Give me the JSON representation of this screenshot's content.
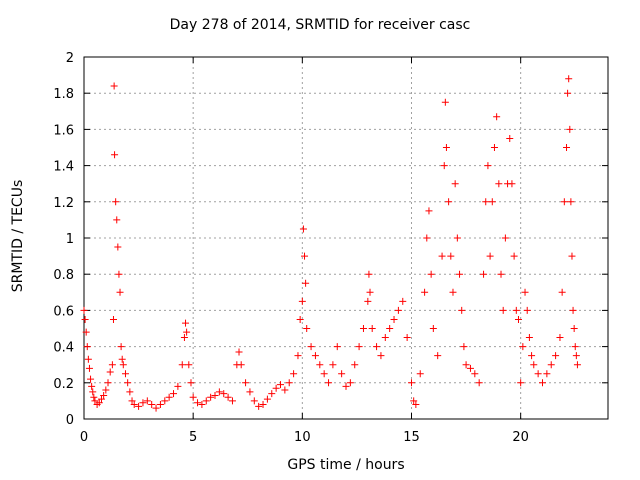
{
  "chart_data": {
    "type": "scatter",
    "title": "Day 278 of 2014, SRMTID for receiver casc",
    "xlabel": "GPS time / hours",
    "ylabel": "SRMTID / TECUs",
    "xlim": [
      0,
      24
    ],
    "ylim": [
      0,
      2
    ],
    "xticks": [
      0,
      5,
      10,
      15,
      20
    ],
    "yticks": [
      0,
      0.2,
      0.4,
      0.6,
      0.8,
      1,
      1.2,
      1.4,
      1.6,
      1.8,
      2
    ],
    "grid": true,
    "marker": "+",
    "color": "#ff0000",
    "series": [
      {
        "name": "SRMTID",
        "points": [
          [
            0.0,
            0.6
          ],
          [
            0.05,
            0.55
          ],
          [
            0.1,
            0.48
          ],
          [
            0.15,
            0.4
          ],
          [
            0.2,
            0.33
          ],
          [
            0.25,
            0.28
          ],
          [
            0.3,
            0.22
          ],
          [
            0.35,
            0.18
          ],
          [
            0.4,
            0.15
          ],
          [
            0.45,
            0.12
          ],
          [
            0.5,
            0.1
          ],
          [
            0.6,
            0.08
          ],
          [
            0.7,
            0.09
          ],
          [
            0.8,
            0.11
          ],
          [
            0.9,
            0.13
          ],
          [
            1.0,
            0.16
          ],
          [
            1.1,
            0.2
          ],
          [
            1.2,
            0.26
          ],
          [
            1.3,
            0.3
          ],
          [
            1.35,
            0.55
          ],
          [
            1.38,
            1.84
          ],
          [
            1.4,
            1.46
          ],
          [
            1.45,
            1.2
          ],
          [
            1.5,
            1.1
          ],
          [
            1.55,
            0.95
          ],
          [
            1.6,
            0.8
          ],
          [
            1.65,
            0.7
          ],
          [
            1.7,
            0.4
          ],
          [
            1.75,
            0.33
          ],
          [
            1.8,
            0.3
          ],
          [
            1.9,
            0.25
          ],
          [
            2.0,
            0.2
          ],
          [
            2.1,
            0.15
          ],
          [
            2.2,
            0.1
          ],
          [
            2.3,
            0.08
          ],
          [
            2.5,
            0.07
          ],
          [
            2.7,
            0.09
          ],
          [
            2.9,
            0.1
          ],
          [
            3.1,
            0.08
          ],
          [
            3.3,
            0.06
          ],
          [
            3.5,
            0.08
          ],
          [
            3.7,
            0.1
          ],
          [
            3.9,
            0.12
          ],
          [
            4.1,
            0.14
          ],
          [
            4.3,
            0.18
          ],
          [
            4.5,
            0.3
          ],
          [
            4.6,
            0.45
          ],
          [
            4.65,
            0.53
          ],
          [
            4.7,
            0.48
          ],
          [
            4.8,
            0.3
          ],
          [
            4.9,
            0.2
          ],
          [
            5.0,
            0.12
          ],
          [
            5.2,
            0.09
          ],
          [
            5.4,
            0.08
          ],
          [
            5.6,
            0.1
          ],
          [
            5.8,
            0.12
          ],
          [
            6.0,
            0.13
          ],
          [
            6.2,
            0.15
          ],
          [
            6.4,
            0.14
          ],
          [
            6.6,
            0.12
          ],
          [
            6.8,
            0.1
          ],
          [
            7.0,
            0.3
          ],
          [
            7.1,
            0.37
          ],
          [
            7.2,
            0.3
          ],
          [
            7.4,
            0.2
          ],
          [
            7.6,
            0.15
          ],
          [
            7.8,
            0.1
          ],
          [
            8.0,
            0.07
          ],
          [
            8.2,
            0.08
          ],
          [
            8.4,
            0.11
          ],
          [
            8.6,
            0.14
          ],
          [
            8.8,
            0.17
          ],
          [
            9.0,
            0.19
          ],
          [
            9.2,
            0.16
          ],
          [
            9.4,
            0.2
          ],
          [
            9.6,
            0.25
          ],
          [
            9.8,
            0.35
          ],
          [
            9.9,
            0.55
          ],
          [
            10.0,
            0.65
          ],
          [
            10.05,
            1.05
          ],
          [
            10.1,
            0.9
          ],
          [
            10.15,
            0.75
          ],
          [
            10.2,
            0.5
          ],
          [
            10.4,
            0.4
          ],
          [
            10.6,
            0.35
          ],
          [
            10.8,
            0.3
          ],
          [
            11.0,
            0.25
          ],
          [
            11.2,
            0.2
          ],
          [
            11.4,
            0.3
          ],
          [
            11.6,
            0.4
          ],
          [
            11.8,
            0.25
          ],
          [
            12.0,
            0.18
          ],
          [
            12.2,
            0.2
          ],
          [
            12.4,
            0.3
          ],
          [
            12.6,
            0.4
          ],
          [
            12.8,
            0.5
          ],
          [
            13.0,
            0.65
          ],
          [
            13.05,
            0.8
          ],
          [
            13.1,
            0.7
          ],
          [
            13.2,
            0.5
          ],
          [
            13.4,
            0.4
          ],
          [
            13.6,
            0.35
          ],
          [
            13.8,
            0.45
          ],
          [
            14.0,
            0.5
          ],
          [
            14.2,
            0.55
          ],
          [
            14.4,
            0.6
          ],
          [
            14.6,
            0.65
          ],
          [
            14.8,
            0.45
          ],
          [
            15.0,
            0.2
          ],
          [
            15.1,
            0.1
          ],
          [
            15.2,
            0.08
          ],
          [
            15.4,
            0.25
          ],
          [
            15.6,
            0.7
          ],
          [
            15.7,
            1.0
          ],
          [
            15.8,
            1.15
          ],
          [
            15.9,
            0.8
          ],
          [
            16.0,
            0.5
          ],
          [
            16.2,
            0.35
          ],
          [
            16.4,
            0.9
          ],
          [
            16.5,
            1.4
          ],
          [
            16.55,
            1.75
          ],
          [
            16.6,
            1.5
          ],
          [
            16.7,
            1.2
          ],
          [
            16.8,
            0.9
          ],
          [
            16.9,
            0.7
          ],
          [
            17.0,
            1.3
          ],
          [
            17.1,
            1.0
          ],
          [
            17.2,
            0.8
          ],
          [
            17.3,
            0.6
          ],
          [
            17.4,
            0.4
          ],
          [
            17.5,
            0.3
          ],
          [
            17.7,
            0.28
          ],
          [
            17.9,
            0.25
          ],
          [
            18.1,
            0.2
          ],
          [
            18.3,
            0.8
          ],
          [
            18.4,
            1.2
          ],
          [
            18.5,
            1.4
          ],
          [
            18.6,
            0.9
          ],
          [
            18.7,
            1.2
          ],
          [
            18.8,
            1.5
          ],
          [
            18.9,
            1.67
          ],
          [
            19.0,
            1.3
          ],
          [
            19.1,
            0.8
          ],
          [
            19.2,
            0.6
          ],
          [
            19.3,
            1.0
          ],
          [
            19.4,
            1.3
          ],
          [
            19.5,
            1.55
          ],
          [
            19.6,
            1.3
          ],
          [
            19.7,
            0.9
          ],
          [
            19.8,
            0.6
          ],
          [
            19.9,
            0.55
          ],
          [
            20.0,
            0.2
          ],
          [
            20.1,
            0.4
          ],
          [
            20.2,
            0.7
          ],
          [
            20.3,
            0.6
          ],
          [
            20.4,
            0.45
          ],
          [
            20.5,
            0.35
          ],
          [
            20.6,
            0.3
          ],
          [
            20.8,
            0.25
          ],
          [
            21.0,
            0.2
          ],
          [
            21.2,
            0.25
          ],
          [
            21.4,
            0.3
          ],
          [
            21.6,
            0.35
          ],
          [
            21.8,
            0.45
          ],
          [
            21.9,
            0.7
          ],
          [
            22.0,
            1.2
          ],
          [
            22.1,
            1.5
          ],
          [
            22.15,
            1.8
          ],
          [
            22.2,
            1.88
          ],
          [
            22.25,
            1.6
          ],
          [
            22.3,
            1.2
          ],
          [
            22.35,
            0.9
          ],
          [
            22.4,
            0.6
          ],
          [
            22.45,
            0.5
          ],
          [
            22.5,
            0.4
          ],
          [
            22.55,
            0.35
          ],
          [
            22.6,
            0.3
          ]
        ]
      }
    ]
  }
}
